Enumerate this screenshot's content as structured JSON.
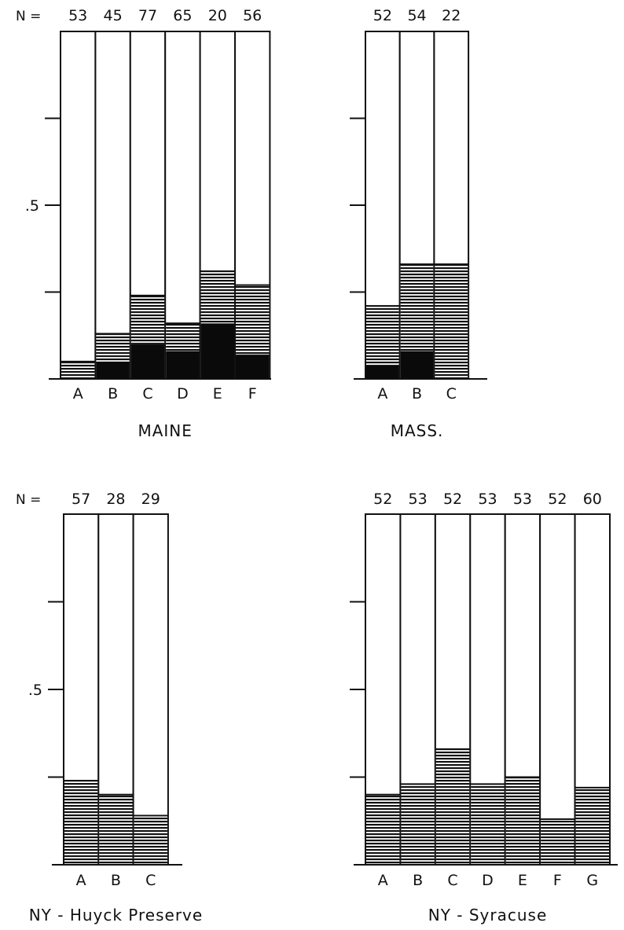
{
  "chart_data": [
    {
      "type": "bar",
      "stacked": true,
      "title": "MAINE",
      "n_prefix": "N =",
      "n_values": [
        "53",
        "45",
        "77",
        "65",
        "20",
        "56"
      ],
      "categories": [
        "A",
        "B",
        "C",
        "D",
        "E",
        "F"
      ],
      "ytick_labels": [
        ".5"
      ],
      "ylim": [
        0,
        1
      ],
      "series": [
        {
          "pattern": "solid",
          "values": [
            0.0,
            0.05,
            0.1,
            0.08,
            0.16,
            0.07
          ]
        },
        {
          "pattern": "hatched",
          "values": [
            0.05,
            0.08,
            0.14,
            0.08,
            0.15,
            0.2
          ]
        }
      ]
    },
    {
      "type": "bar",
      "stacked": true,
      "title": "MASS.",
      "n_prefix": "",
      "n_values": [
        "52",
        "54",
        "22"
      ],
      "categories": [
        "A",
        "B",
        "C"
      ],
      "ytick_labels": [],
      "ylim": [
        0,
        1
      ],
      "series": [
        {
          "pattern": "solid",
          "values": [
            0.04,
            0.08,
            0.0
          ]
        },
        {
          "pattern": "hatched",
          "values": [
            0.17,
            0.25,
            0.33
          ]
        }
      ]
    },
    {
      "type": "bar",
      "stacked": true,
      "title": "NY - Huyck Preserve",
      "n_prefix": "N =",
      "n_values": [
        "57",
        "28",
        "29"
      ],
      "categories": [
        "A",
        "B",
        "C"
      ],
      "ytick_labels": [
        ".5"
      ],
      "ylim": [
        0,
        1
      ],
      "series": [
        {
          "pattern": "solid",
          "values": [
            0,
            0,
            0
          ]
        },
        {
          "pattern": "hatched",
          "values": [
            0.24,
            0.2,
            0.14
          ]
        }
      ]
    },
    {
      "type": "bar",
      "stacked": true,
      "title": "NY - Syracuse",
      "n_prefix": "",
      "n_values": [
        "52",
        "53",
        "52",
        "53",
        "53",
        "52",
        "60"
      ],
      "categories": [
        "A",
        "B",
        "C",
        "D",
        "E",
        "F",
        "G"
      ],
      "ytick_labels": [],
      "ylim": [
        0,
        1
      ],
      "series": [
        {
          "pattern": "solid",
          "values": [
            0,
            0,
            0,
            0,
            0,
            0,
            0
          ]
        },
        {
          "pattern": "hatched",
          "values": [
            0.2,
            0.23,
            0.33,
            0.23,
            0.25,
            0.13,
            0.22
          ]
        }
      ]
    }
  ]
}
